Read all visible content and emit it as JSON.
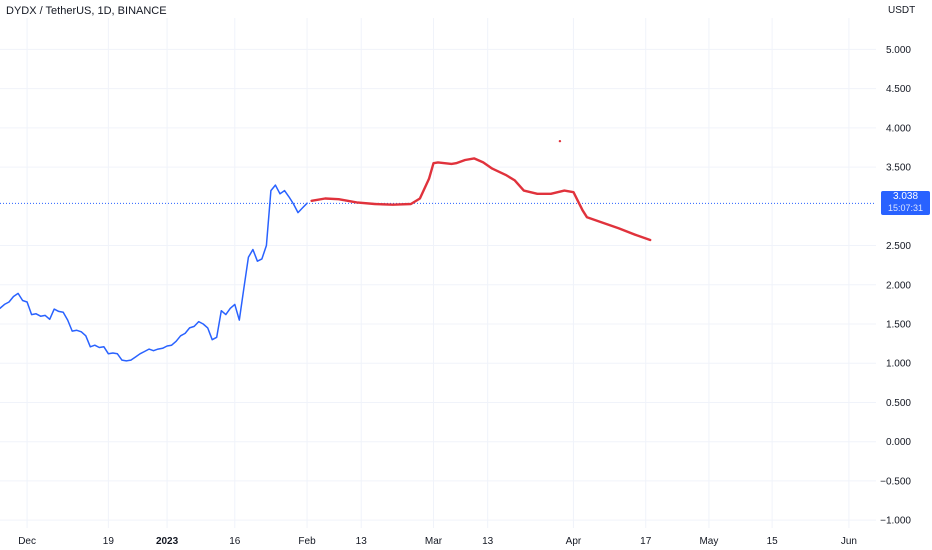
{
  "header": {
    "title": "DYDX / TetherUS, 1D, BINANCE",
    "currency": "USDT"
  },
  "price_tag": {
    "price": "3.038",
    "countdown": "15:07:31"
  },
  "colors": {
    "price_line": "#2962ff",
    "forecast_line": "#e0323c",
    "grid": "#f0f3fa",
    "axis_text": "#131722"
  },
  "chart_data": {
    "type": "line",
    "x_axis_type": "date",
    "ylim": [
      -1.1,
      5.4
    ],
    "xlim": [
      "2022-11-25",
      "2023-06-07"
    ],
    "grid": true,
    "y_ticks": [
      {
        "value": 5.0,
        "label": "5.000"
      },
      {
        "value": 4.5,
        "label": "4.500"
      },
      {
        "value": 4.0,
        "label": "4.000"
      },
      {
        "value": 3.5,
        "label": "3.500"
      },
      {
        "value": 2.5,
        "label": "2.500"
      },
      {
        "value": 2.0,
        "label": "2.000"
      },
      {
        "value": 1.5,
        "label": "1.500"
      },
      {
        "value": 1.0,
        "label": "1.000"
      },
      {
        "value": 0.5,
        "label": "0.500"
      },
      {
        "value": 0.0,
        "label": "0.000"
      },
      {
        "value": -0.5,
        "label": "−0.500"
      },
      {
        "value": -1.0,
        "label": "−1.000"
      }
    ],
    "x_ticks": [
      {
        "date": "2022-12-01",
        "label": "Dec",
        "bold": false
      },
      {
        "date": "2022-12-19",
        "label": "19",
        "bold": false
      },
      {
        "date": "2023-01-01",
        "label": "2023",
        "bold": true
      },
      {
        "date": "2023-01-16",
        "label": "16",
        "bold": false
      },
      {
        "date": "2023-02-01",
        "label": "Feb",
        "bold": false
      },
      {
        "date": "2023-02-13",
        "label": "13",
        "bold": false
      },
      {
        "date": "2023-03-01",
        "label": "Mar",
        "bold": false
      },
      {
        "date": "2023-03-13",
        "label": "13",
        "bold": false
      },
      {
        "date": "2023-04-01",
        "label": "Apr",
        "bold": false
      },
      {
        "date": "2023-04-17",
        "label": "17",
        "bold": false
      },
      {
        "date": "2023-05-01",
        "label": "May",
        "bold": false
      },
      {
        "date": "2023-05-15",
        "label": "15",
        "bold": false
      },
      {
        "date": "2023-06-01",
        "label": "Jun",
        "bold": false
      }
    ],
    "current_price": 3.038,
    "series": [
      {
        "role": "price",
        "points": [
          [
            "2022-11-25",
            1.7
          ],
          [
            "2022-11-26",
            1.75
          ],
          [
            "2022-11-27",
            1.78
          ],
          [
            "2022-11-28",
            1.85
          ],
          [
            "2022-11-29",
            1.89
          ],
          [
            "2022-11-30",
            1.8
          ],
          [
            "2022-12-01",
            1.78
          ],
          [
            "2022-12-02",
            1.62
          ],
          [
            "2022-12-03",
            1.63
          ],
          [
            "2022-12-04",
            1.6
          ],
          [
            "2022-12-05",
            1.61
          ],
          [
            "2022-12-06",
            1.56
          ],
          [
            "2022-12-07",
            1.69
          ],
          [
            "2022-12-08",
            1.66
          ],
          [
            "2022-12-09",
            1.65
          ],
          [
            "2022-12-10",
            1.55
          ],
          [
            "2022-12-11",
            1.41
          ],
          [
            "2022-12-12",
            1.42
          ],
          [
            "2022-12-13",
            1.4
          ],
          [
            "2022-12-14",
            1.35
          ],
          [
            "2022-12-15",
            1.21
          ],
          [
            "2022-12-16",
            1.23
          ],
          [
            "2022-12-17",
            1.2
          ],
          [
            "2022-12-18",
            1.21
          ],
          [
            "2022-12-19",
            1.12
          ],
          [
            "2022-12-20",
            1.13
          ],
          [
            "2022-12-21",
            1.12
          ],
          [
            "2022-12-22",
            1.04
          ],
          [
            "2022-12-23",
            1.03
          ],
          [
            "2022-12-24",
            1.04
          ],
          [
            "2022-12-25",
            1.08
          ],
          [
            "2022-12-26",
            1.12
          ],
          [
            "2022-12-27",
            1.15
          ],
          [
            "2022-12-28",
            1.18
          ],
          [
            "2022-12-29",
            1.16
          ],
          [
            "2022-12-30",
            1.18
          ],
          [
            "2022-12-31",
            1.19
          ],
          [
            "2023-01-01",
            1.22
          ],
          [
            "2023-01-02",
            1.23
          ],
          [
            "2023-01-03",
            1.28
          ],
          [
            "2023-01-04",
            1.35
          ],
          [
            "2023-01-05",
            1.38
          ],
          [
            "2023-01-06",
            1.45
          ],
          [
            "2023-01-07",
            1.47
          ],
          [
            "2023-01-08",
            1.53
          ],
          [
            "2023-01-09",
            1.5
          ],
          [
            "2023-01-10",
            1.45
          ],
          [
            "2023-01-11",
            1.3
          ],
          [
            "2023-01-12",
            1.33
          ],
          [
            "2023-01-13",
            1.67
          ],
          [
            "2023-01-14",
            1.62
          ],
          [
            "2023-01-15",
            1.7
          ],
          [
            "2023-01-16",
            1.75
          ],
          [
            "2023-01-17",
            1.55
          ],
          [
            "2023-01-18",
            1.95
          ],
          [
            "2023-01-19",
            2.35
          ],
          [
            "2023-01-20",
            2.45
          ],
          [
            "2023-01-21",
            2.3
          ],
          [
            "2023-01-22",
            2.33
          ],
          [
            "2023-01-23",
            2.5
          ],
          [
            "2023-01-24",
            3.2
          ],
          [
            "2023-01-25",
            3.27
          ],
          [
            "2023-01-26",
            3.16
          ],
          [
            "2023-01-27",
            3.2
          ],
          [
            "2023-01-28",
            3.12
          ],
          [
            "2023-01-29",
            3.03
          ],
          [
            "2023-01-30",
            2.92
          ],
          [
            "2023-01-31",
            2.98
          ],
          [
            "2023-02-01",
            3.04
          ]
        ]
      },
      {
        "role": "forecast",
        "points": [
          [
            "2023-02-02",
            3.07
          ],
          [
            "2023-02-05",
            3.1
          ],
          [
            "2023-02-08",
            3.09
          ],
          [
            "2023-02-12",
            3.05
          ],
          [
            "2023-02-16",
            3.03
          ],
          [
            "2023-02-20",
            3.02
          ],
          [
            "2023-02-24",
            3.03
          ],
          [
            "2023-02-26",
            3.1
          ],
          [
            "2023-02-28",
            3.35
          ],
          [
            "2023-03-01",
            3.55
          ],
          [
            "2023-03-02",
            3.56
          ],
          [
            "2023-03-05",
            3.54
          ],
          [
            "2023-03-06",
            3.55
          ],
          [
            "2023-03-08",
            3.59
          ],
          [
            "2023-03-10",
            3.61
          ],
          [
            "2023-03-12",
            3.56
          ],
          [
            "2023-03-14",
            3.48
          ],
          [
            "2023-03-17",
            3.4
          ],
          [
            "2023-03-19",
            3.33
          ],
          [
            "2023-03-21",
            3.2
          ],
          [
            "2023-03-24",
            3.16
          ],
          [
            "2023-03-27",
            3.16
          ],
          [
            "2023-03-30",
            3.2
          ],
          [
            "2023-04-01",
            3.18
          ],
          [
            "2023-04-03",
            2.95
          ],
          [
            "2023-04-04",
            2.86
          ],
          [
            "2023-04-07",
            2.8
          ],
          [
            "2023-04-11",
            2.72
          ],
          [
            "2023-04-15",
            2.63
          ],
          [
            "2023-04-18",
            2.57
          ]
        ]
      }
    ],
    "outlier_point": [
      "2023-03-29",
      3.83
    ]
  }
}
